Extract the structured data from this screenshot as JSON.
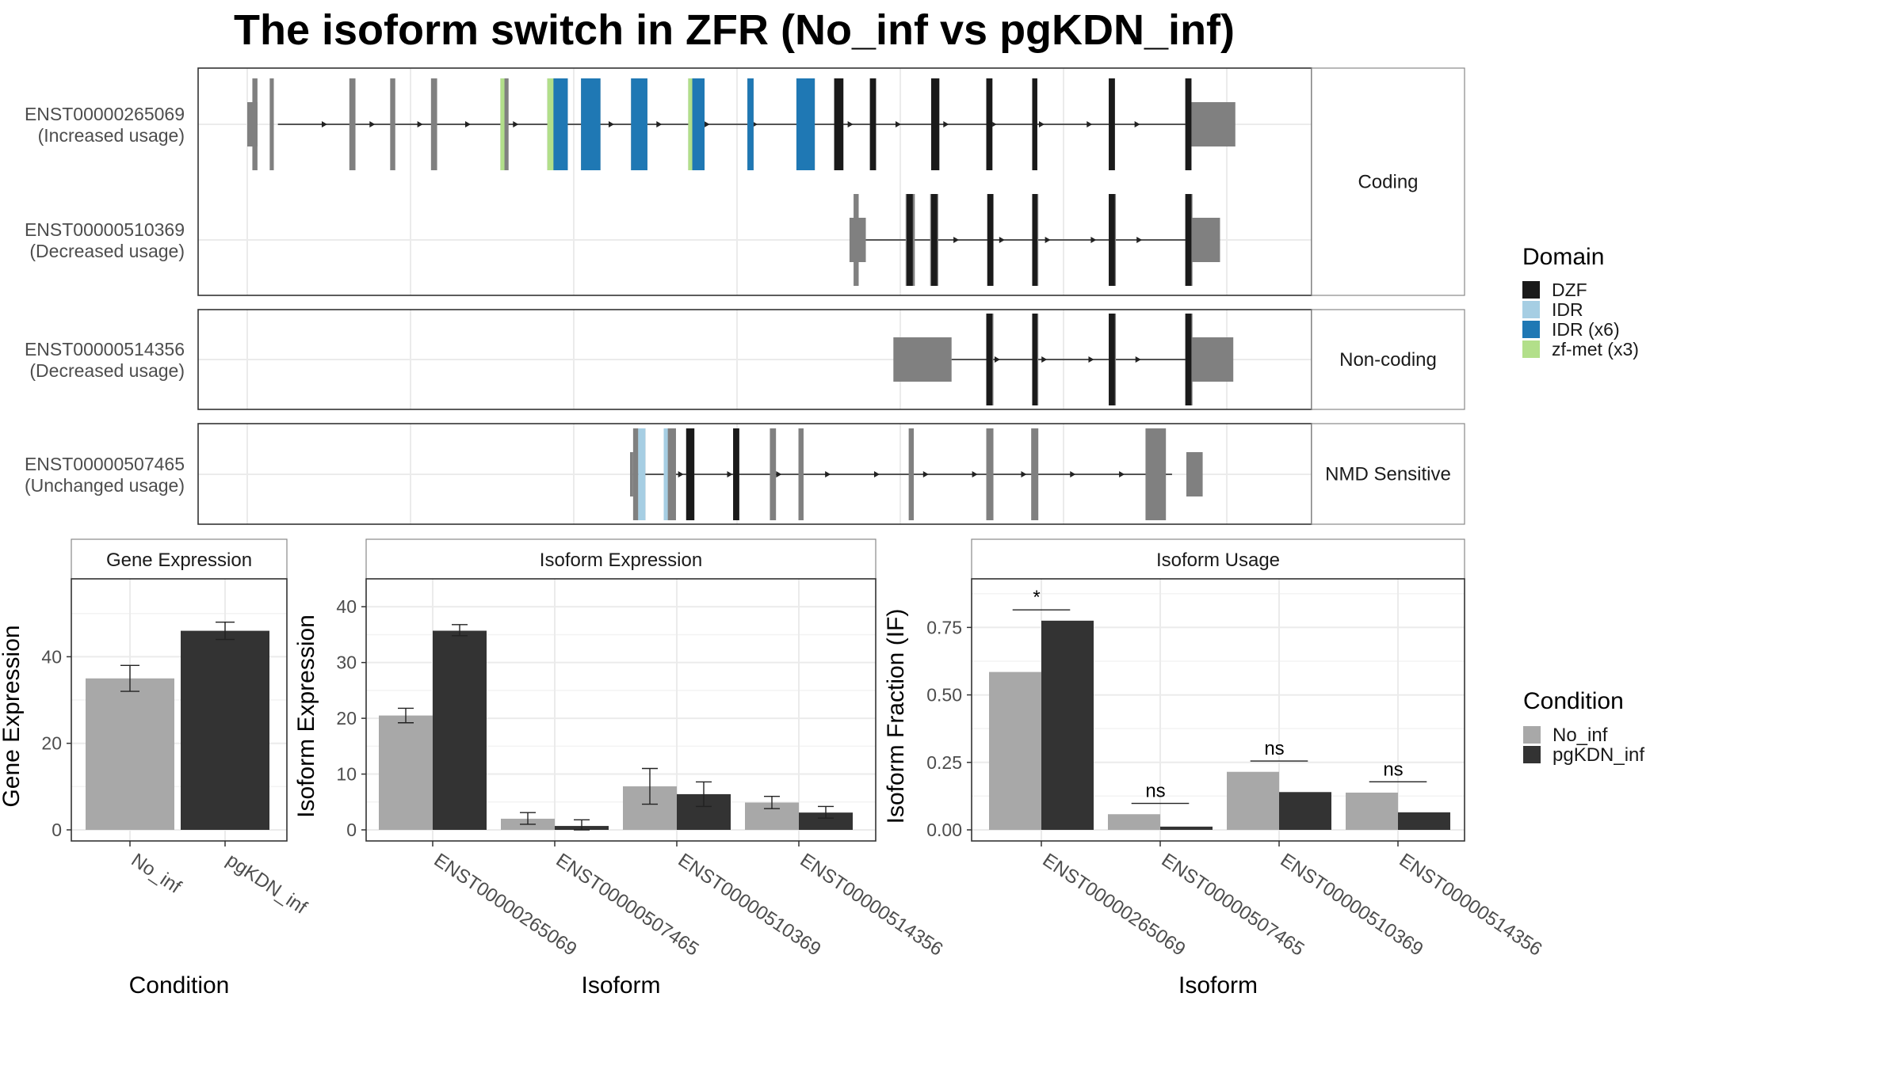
{
  "title": "The isoform switch in ZFR (No_inf vs pgKDN_inf)",
  "colors": {
    "no_inf": "#a8a8a8",
    "pgkdn_inf": "#333333",
    "exon": "#808080",
    "DZF": "#1a1a1a",
    "IDR": "#a6cee3",
    "IDR (x6)": "#1f78b4",
    "zf-met (x3)": "#b2df8a",
    "grid": "#ebebeb",
    "strip_bg": "#ffffff"
  },
  "structure": {
    "x_domain": [
      0,
      1000
    ],
    "facets": [
      {
        "label": "Coding",
        "tracks": [
          0,
          1
        ]
      },
      {
        "label": "Non-coding",
        "tracks": [
          2
        ]
      },
      {
        "label": "NMD Sensitive",
        "tracks": [
          3
        ]
      }
    ],
    "tracks": [
      {
        "name": "ENST00000265069",
        "usage": "(Increased usage)",
        "intron": [
          30,
          920
        ],
        "utr": [
          [
            0,
            10
          ],
          [
            920,
            968
          ]
        ],
        "exons": [
          [
            5,
            10
          ],
          [
            22,
            26
          ],
          [
            100,
            106
          ],
          [
            140,
            145
          ],
          [
            180,
            186
          ],
          [
            248,
            256
          ],
          [
            294,
            314
          ],
          [
            327,
            346
          ],
          [
            376,
            392
          ],
          [
            432,
            448
          ],
          [
            490,
            496
          ],
          [
            538,
            556
          ],
          [
            575,
            584
          ],
          [
            610,
            616
          ],
          [
            670,
            678
          ],
          [
            724,
            730
          ],
          [
            769,
            774
          ],
          [
            844,
            850
          ],
          [
            919,
            925
          ]
        ],
        "domains": [
          {
            "type": "zf-met (x3)",
            "exons": [
              [
                248,
                252
              ],
              [
                294,
                300
              ],
              [
                432,
                436
              ]
            ]
          },
          {
            "type": "IDR (x6)",
            "exons": [
              [
                300,
                314
              ],
              [
                327,
                346
              ],
              [
                376,
                392
              ],
              [
                436,
                448
              ],
              [
                490,
                496
              ],
              [
                538,
                556
              ]
            ]
          },
          {
            "type": "DZF",
            "exons": [
              [
                575,
                584
              ],
              [
                610,
                616
              ],
              [
                670,
                678
              ],
              [
                724,
                730
              ],
              [
                769,
                774
              ],
              [
                844,
                850
              ],
              [
                919,
                925
              ]
            ]
          }
        ]
      },
      {
        "name": "ENST00000510369",
        "usage": "(Decreased usage)",
        "intron": [
          606,
          920
        ],
        "utr": [
          [
            590,
            606
          ],
          [
            920,
            953
          ]
        ],
        "exons": [
          [
            594,
            599
          ],
          [
            645,
            654
          ],
          [
            669,
            677
          ],
          [
            725,
            731
          ],
          [
            769,
            775
          ],
          [
            844,
            851
          ],
          [
            919,
            926
          ]
        ],
        "domains": [
          {
            "type": "DZF",
            "exons": [
              [
                646,
                652
              ],
              [
                670,
                676
              ],
              [
                725,
                731
              ],
              [
                769,
                774
              ],
              [
                844,
                850
              ],
              [
                919,
                925
              ]
            ]
          }
        ]
      },
      {
        "name": "ENST00000514356",
        "usage": "(Decreased usage)",
        "intron": [
          690,
          920
        ],
        "utr": [
          [
            633,
            690
          ],
          [
            920,
            966
          ]
        ],
        "exons": [
          [
            724,
            731
          ],
          [
            769,
            775
          ],
          [
            844,
            851
          ],
          [
            919,
            926
          ]
        ],
        "domains": [
          {
            "type": "DZF",
            "exons": [
              [
                724,
                730
              ],
              [
                769,
                774
              ],
              [
                844,
                850
              ],
              [
                919,
                925
              ]
            ]
          }
        ]
      },
      {
        "name": "ENST00000507465",
        "usage": "(Unchanged usage)",
        "intron": [
          378,
          906
        ],
        "utr": [
          [
            375,
            378
          ],
          [
            920,
            936
          ]
        ],
        "exons": [
          [
            378,
            383
          ],
          [
            383,
            390
          ],
          [
            408,
            420
          ],
          [
            430,
            438
          ],
          [
            476,
            482
          ],
          [
            512,
            518
          ],
          [
            540,
            545
          ],
          [
            648,
            653
          ],
          [
            724,
            731
          ],
          [
            768,
            775
          ],
          [
            880,
            900
          ]
        ],
        "domains": [
          {
            "type": "IDR",
            "exons": [
              [
                383,
                390
              ],
              [
                408,
                412
              ]
            ]
          },
          {
            "type": "DZF",
            "exons": [
              [
                430,
                438
              ],
              [
                476,
                482
              ]
            ]
          }
        ]
      }
    ],
    "legend_title": "Domain",
    "legend_items": [
      "DZF",
      "IDR",
      "IDR (x6)",
      "zf-met (x3)"
    ]
  },
  "chart_data": [
    {
      "type": "bar",
      "panel": "Gene Expression",
      "xlabel": "Condition",
      "ylabel": "Gene Expression",
      "categories": [
        "No_inf",
        "pgKDN_inf"
      ],
      "values": [
        35.0,
        46.0
      ],
      "errors": [
        [
          32.0,
          38.0
        ],
        [
          44.0,
          48.0
        ]
      ],
      "ylim": [
        0,
        58
      ],
      "yticks": [
        0,
        20,
        40
      ],
      "yticklabels": [
        "0",
        "20",
        "40"
      ],
      "grid": true
    },
    {
      "type": "bar",
      "panel": "Isoform Expression",
      "xlabel": "Isoform",
      "ylabel": "Isoform Expression",
      "categories": [
        "ENST00000265069",
        "ENST00000507465",
        "ENST00000510369",
        "ENST00000514356"
      ],
      "series": [
        {
          "name": "No_inf",
          "values": [
            20.5,
            2.0,
            7.8,
            4.9
          ],
          "errors": [
            [
              19.2,
              21.8
            ],
            [
              1.0,
              3.1
            ],
            [
              4.6,
              11.0
            ],
            [
              3.8,
              6.0
            ]
          ]
        },
        {
          "name": "pgKDN_inf",
          "values": [
            35.7,
            0.7,
            6.4,
            3.1
          ],
          "errors": [
            [
              34.8,
              36.8
            ],
            [
              0.0,
              1.8
            ],
            [
              4.2,
              8.6
            ],
            [
              2.1,
              4.2
            ]
          ]
        }
      ],
      "ylim": [
        0,
        45
      ],
      "yticks": [
        0,
        10,
        20,
        30,
        40
      ],
      "yticklabels": [
        "0",
        "10",
        "20",
        "30",
        "40"
      ],
      "grid": true
    },
    {
      "type": "bar",
      "panel": "Isoform Usage",
      "xlabel": "Isoform",
      "ylabel": "Isoform Fraction (IF)",
      "categories": [
        "ENST00000265069",
        "ENST00000507465",
        "ENST00000510369",
        "ENST00000514356"
      ],
      "series": [
        {
          "name": "No_inf",
          "values": [
            0.585,
            0.058,
            0.215,
            0.138
          ]
        },
        {
          "name": "pgKDN_inf",
          "values": [
            0.775,
            0.012,
            0.14,
            0.065
          ]
        }
      ],
      "significance": [
        "*",
        "ns",
        "ns",
        "ns"
      ],
      "ylim": [
        0,
        0.93
      ],
      "yticks": [
        0,
        0.25,
        0.5,
        0.75
      ],
      "yticklabels": [
        "0.00",
        "0.25",
        "0.50",
        "0.75"
      ],
      "grid": true
    }
  ],
  "condition_legend": {
    "title": "Condition",
    "items": [
      "No_inf",
      "pgKDN_inf"
    ]
  }
}
